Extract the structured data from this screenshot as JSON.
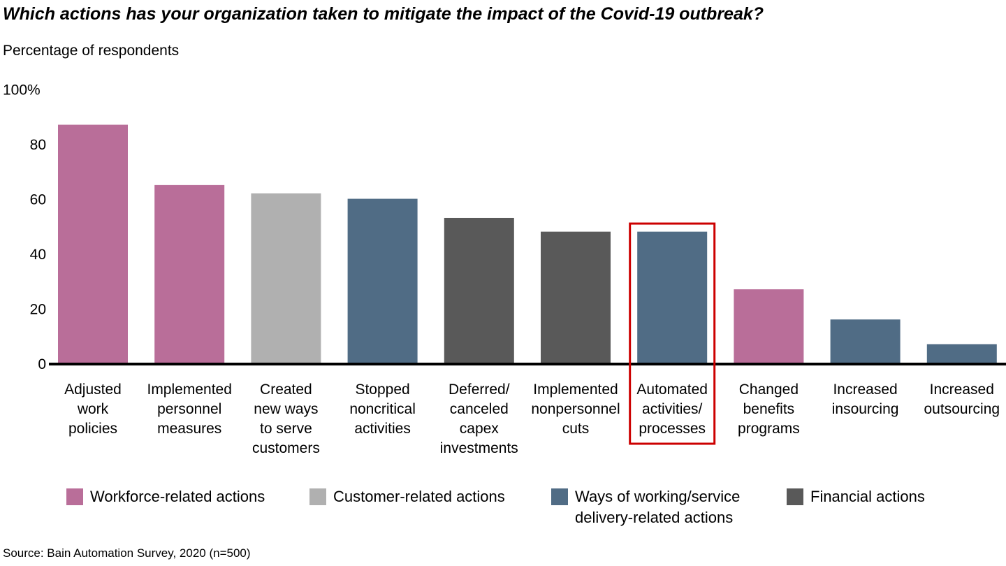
{
  "chart_data": {
    "type": "bar",
    "title": "Which actions has your organization taken to mitigate the impact of the Covid-19 outbreak?",
    "ylabel": "Percentage of respondents",
    "ylim": [
      0,
      100
    ],
    "yticks": [
      "0",
      "20",
      "40",
      "60",
      "80",
      "100%"
    ],
    "grid": false,
    "categories": [
      [
        "Adjusted",
        "work",
        "policies"
      ],
      [
        "Implemented",
        "personnel",
        "measures"
      ],
      [
        "Created",
        "new ways",
        "to serve",
        "customers"
      ],
      [
        "Stopped",
        "noncritical",
        "activities"
      ],
      [
        "Deferred/",
        "canceled",
        "capex",
        "investments"
      ],
      [
        "Implemented",
        "nonpersonnel",
        "cuts"
      ],
      [
        "Automated",
        "activities/",
        "processes"
      ],
      [
        "Changed",
        "benefits",
        "programs"
      ],
      [
        "Increased",
        "insourcing"
      ],
      [
        "Increased",
        "outsourcing"
      ]
    ],
    "values": [
      87,
      65,
      62,
      60,
      53,
      48,
      48,
      27,
      16,
      7
    ],
    "groups": [
      0,
      0,
      1,
      2,
      3,
      3,
      2,
      0,
      2,
      2
    ],
    "highlighted_index": 6,
    "highlight_color": "#CC0000",
    "legend": [
      {
        "label": "Workforce-related actions",
        "color": "#B96E99"
      },
      {
        "label": "Customer-related actions",
        "color": "#B0B0B0"
      },
      {
        "label": "Ways of working/service delivery-related actions",
        "color": "#506C85"
      },
      {
        "label": "Financial actions",
        "color": "#595959"
      }
    ],
    "legend_placement": "bottom",
    "source": "Source: Bain Automation Survey, 2020 (n=500)"
  }
}
